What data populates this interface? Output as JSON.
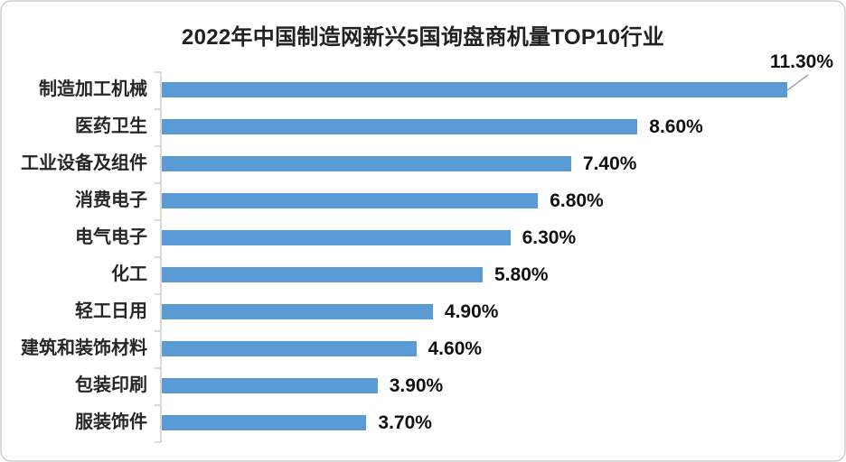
{
  "frame": {
    "background": "#ffffff",
    "border_color": "#d9d9d9"
  },
  "title": {
    "prefix": "2022年中国制造网新兴5国询盘商机量",
    "strong": "TOP10",
    "suffix": "行业"
  },
  "chart_data": {
    "type": "bar",
    "orientation": "horizontal",
    "title": "2022年中国制造网新兴5国询盘商机量TOP10行业",
    "categories": [
      "制造加工机械",
      "医药卫生",
      "工业设备及组件",
      "消费电子",
      "电气电子",
      "化工",
      "轻工日用",
      "建筑和装饰材料",
      "包装印刷",
      "服装饰件"
    ],
    "values": [
      11.3,
      8.6,
      7.4,
      6.8,
      6.3,
      5.8,
      4.9,
      4.6,
      3.9,
      3.7
    ],
    "labels": [
      "11.30%",
      "8.60%",
      "7.40%",
      "6.80%",
      "6.30%",
      "5.80%",
      "4.90%",
      "4.60%",
      "3.90%",
      "3.70%"
    ],
    "xlim": [
      0,
      12
    ],
    "bar_color": "#5B9BD5",
    "axis_color": "#d9d9d9",
    "leader_line_color": "#a6a6a6",
    "grid": false,
    "legend": false,
    "value_label_position": "end-of-bar",
    "first_value_label_style": "callout-above-bar-with-leader-line"
  }
}
